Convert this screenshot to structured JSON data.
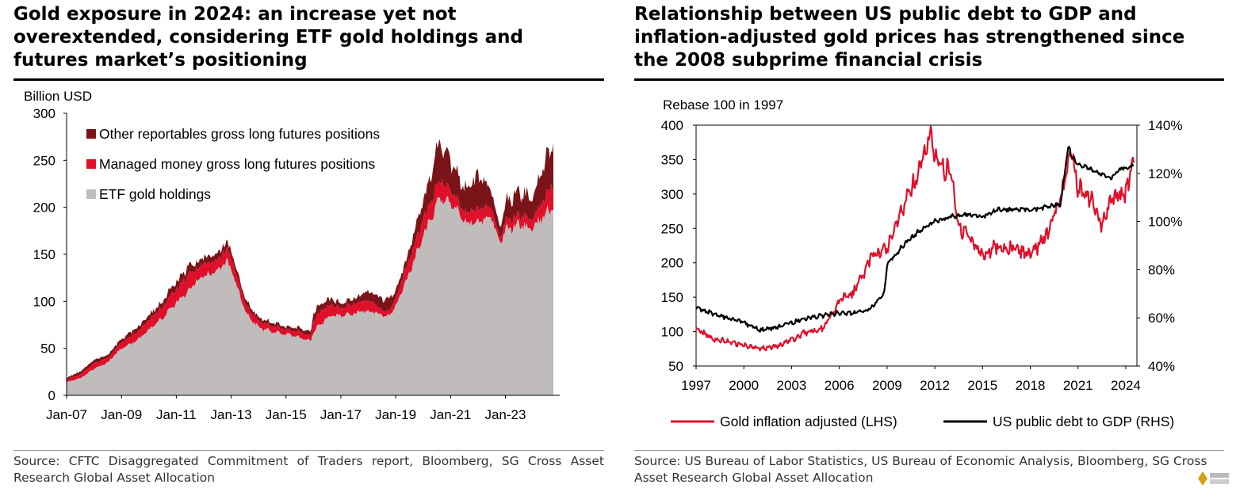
{
  "left": {
    "title": "Gold exposure in 2024: an increase yet not overextended, considering ETF gold holdings and futures market’s positioning",
    "source": "Source: CFTC Disaggregated Commitment of Traders report, Bloomberg, SG Cross Asset Research Global Asset Allocation"
  },
  "right": {
    "title": "Relationship between US public debt to GDP and inflation-adjusted gold prices has strengthened since the 2008 subprime financial crisis",
    "source": "Source: US Bureau of Labor Statistics, US Bureau of Economic Analysis, Bloomberg, SG Cross Asset Research Global Asset Allocation"
  },
  "colors": {
    "etf": "#c0bcbc",
    "managed": "#e0102a",
    "other": "#7a1418",
    "gold": "#e0102a",
    "debt": "#000000"
  },
  "chart_data": [
    {
      "type": "area",
      "ylabel": "Billion USD",
      "ylim": [
        0,
        300
      ],
      "yticks": [
        "0",
        "50",
        "100",
        "150",
        "200",
        "250",
        "300"
      ],
      "xticks": [
        "Jan-07",
        "Jan-09",
        "Jan-11",
        "Jan-13",
        "Jan-15",
        "Jan-17",
        "Jan-19",
        "Jan-21",
        "Jan-23"
      ],
      "xlim": [
        2007.0,
        2024.75
      ],
      "legend_position": "top-left",
      "x": [
        2007.0,
        2007.5,
        2008.0,
        2008.5,
        2009.0,
        2009.5,
        2010.0,
        2010.5,
        2011.0,
        2011.5,
        2011.75,
        2012.0,
        2012.5,
        2012.8,
        2013.0,
        2013.5,
        2014.0,
        2014.5,
        2015.0,
        2015.5,
        2015.9,
        2016.0,
        2016.5,
        2017.0,
        2017.5,
        2018.0,
        2018.5,
        2018.75,
        2019.0,
        2019.5,
        2020.0,
        2020.6,
        2021.0,
        2021.5,
        2022.0,
        2022.5,
        2022.8,
        2023.0,
        2023.5,
        2024.0,
        2024.5,
        2024.75
      ],
      "series": [
        {
          "name": "ETF gold holdings",
          "values": [
            14,
            18,
            28,
            35,
            50,
            57,
            70,
            82,
            98,
            112,
            122,
            128,
            130,
            143,
            135,
            90,
            72,
            68,
            65,
            62,
            57,
            68,
            83,
            85,
            87,
            90,
            86,
            84,
            95,
            130,
            170,
            210,
            205,
            185,
            185,
            190,
            165,
            175,
            182,
            178,
            195,
            200
          ]
        },
        {
          "name": "Managed money gross long futures positions",
          "values": [
            3,
            4,
            6,
            5,
            6,
            8,
            10,
            12,
            15,
            17,
            13,
            13,
            11,
            12,
            13,
            8,
            6,
            6,
            5,
            6,
            5,
            13,
            13,
            8,
            10,
            11,
            6,
            5,
            10,
            15,
            17,
            20,
            15,
            10,
            15,
            10,
            5,
            10,
            10,
            10,
            20,
            25
          ]
        },
        {
          "name": "Other reportables gross long futures positions",
          "values": [
            2,
            3,
            4,
            3,
            4,
            5,
            5,
            6,
            8,
            9,
            7,
            7,
            7,
            8,
            7,
            5,
            4,
            4,
            3,
            4,
            4,
            8,
            7,
            5,
            6,
            9,
            12,
            14,
            8,
            10,
            20,
            40,
            30,
            25,
            35,
            20,
            10,
            20,
            25,
            22,
            40,
            45
          ]
        }
      ]
    },
    {
      "type": "line",
      "ylabel": "Rebase 100 in 1997",
      "ylim": [
        50,
        400
      ],
      "yticks": [
        "50",
        "100",
        "150",
        "200",
        "250",
        "300",
        "350",
        "400"
      ],
      "y2lim": [
        40,
        140
      ],
      "y2ticks": [
        "40%",
        "60%",
        "80%",
        "100%",
        "120%",
        "140%"
      ],
      "xlim": [
        1997,
        2024.7
      ],
      "xticks": [
        "1997",
        "2000",
        "2003",
        "2006",
        "2009",
        "2012",
        "2015",
        "2018",
        "2021",
        "2024"
      ],
      "legend_position": "bottom",
      "series": [
        {
          "name": "Gold inflation adjusted (LHS)",
          "axis": "left",
          "x": [
            1997,
            1998,
            1999,
            2000,
            2001,
            2002,
            2003,
            2004,
            2005,
            2006,
            2007,
            2008,
            2009,
            2010,
            2011,
            2011.7,
            2012,
            2013,
            2013.5,
            2014,
            2015,
            2016,
            2017,
            2018,
            2019,
            2020,
            2020.6,
            2021,
            2022,
            2022.5,
            2023,
            2024,
            2024.5
          ],
          "values": [
            105,
            90,
            85,
            80,
            75,
            78,
            88,
            100,
            105,
            145,
            160,
            210,
            220,
            280,
            330,
            390,
            350,
            330,
            250,
            240,
            210,
            225,
            220,
            210,
            240,
            300,
            365,
            310,
            290,
            250,
            290,
            300,
            350
          ]
        },
        {
          "name": "US public debt to GDP (RHS)",
          "axis": "right",
          "x": [
            1997,
            1998,
            1999,
            2000,
            2001,
            2002,
            2003,
            2004,
            2005,
            2006,
            2007,
            2008,
            2008.8,
            2009,
            2010,
            2011,
            2012,
            2013,
            2014,
            2015,
            2016,
            2017,
            2018,
            2019,
            2019.9,
            2020.4,
            2020.6,
            2021,
            2022,
            2023,
            2023.8,
            2024.5
          ],
          "values": [
            64,
            62,
            60,
            58,
            55,
            56,
            58,
            60,
            61,
            62,
            62,
            64,
            70,
            82,
            90,
            96,
            100,
            102,
            103,
            102,
            105,
            105,
            105,
            106,
            107,
            132,
            127,
            124,
            121,
            118,
            122,
            123
          ]
        }
      ]
    }
  ]
}
